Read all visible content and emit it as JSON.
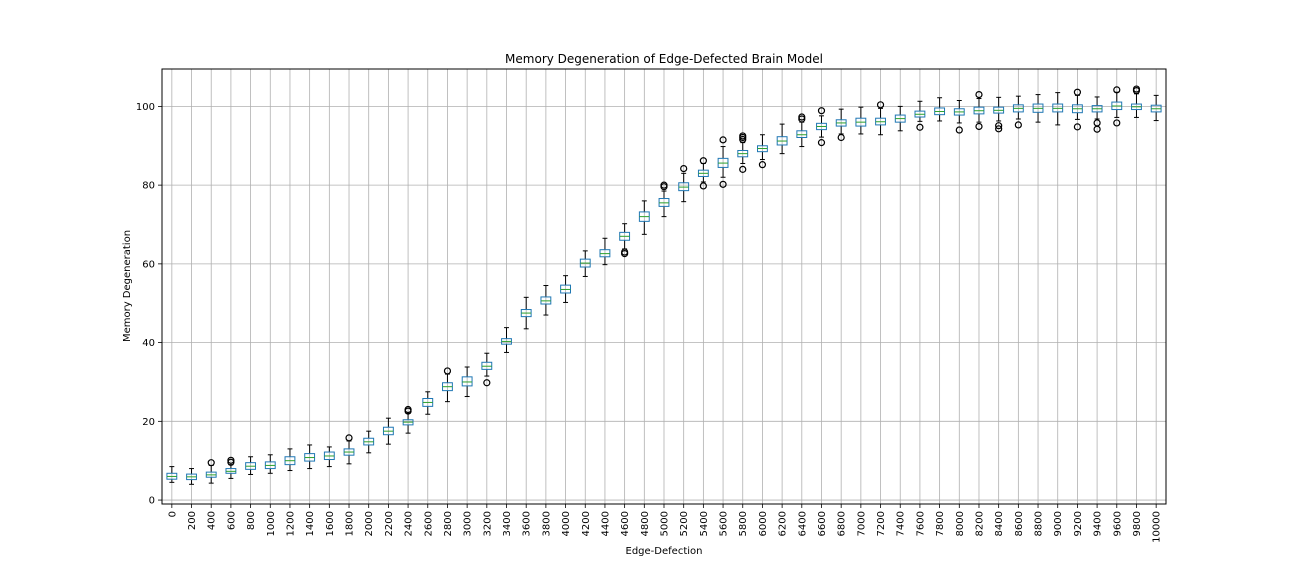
{
  "chart_data": {
    "type": "box",
    "title": "Memory Degeneration of Edge-Defected Brain Model",
    "xlabel": "Edge-Defection",
    "ylabel": "Memory Degeneration",
    "ylim": [
      -1,
      109.5
    ],
    "yticks": [
      0,
      20,
      40,
      60,
      80,
      100
    ],
    "grid": true,
    "box_color": "#1f77b4",
    "median_color": "#2ca02c",
    "whisker_color": "#000000",
    "categories": [
      "0",
      "200",
      "400",
      "600",
      "800",
      "1000",
      "1200",
      "1400",
      "1600",
      "1800",
      "2000",
      "2200",
      "2400",
      "2600",
      "2800",
      "3000",
      "3200",
      "3400",
      "3600",
      "3800",
      "4000",
      "4200",
      "4400",
      "4600",
      "4800",
      "5000",
      "5200",
      "5400",
      "5600",
      "5800",
      "6000",
      "6200",
      "6400",
      "6600",
      "6800",
      "7000",
      "7200",
      "7400",
      "7600",
      "7800",
      "8000",
      "8200",
      "8400",
      "8600",
      "8800",
      "9000",
      "9200",
      "9400",
      "9600",
      "9800",
      "10000"
    ],
    "boxes": [
      {
        "whislo": 4.5,
        "q1": 5.3,
        "med": 6.0,
        "q3": 6.8,
        "whishi": 8.5,
        "fliers": []
      },
      {
        "whislo": 4.0,
        "q1": 5.2,
        "med": 5.9,
        "q3": 6.6,
        "whishi": 8.0,
        "fliers": []
      },
      {
        "whislo": 4.3,
        "q1": 5.8,
        "med": 6.4,
        "q3": 7.1,
        "whishi": 8.8,
        "fliers": [
          9.5
        ]
      },
      {
        "whislo": 5.5,
        "q1": 6.8,
        "med": 7.3,
        "q3": 8.0,
        "whishi": 9.0,
        "fliers": [
          9.6,
          10.1
        ]
      },
      {
        "whislo": 6.5,
        "q1": 7.8,
        "med": 8.6,
        "q3": 9.5,
        "whishi": 11.0,
        "fliers": []
      },
      {
        "whislo": 6.8,
        "q1": 8.0,
        "med": 8.8,
        "q3": 9.7,
        "whishi": 11.5,
        "fliers": []
      },
      {
        "whislo": 7.5,
        "q1": 9.0,
        "med": 10.0,
        "q3": 11.0,
        "whishi": 13.0,
        "fliers": []
      },
      {
        "whislo": 8.0,
        "q1": 9.9,
        "med": 10.8,
        "q3": 11.8,
        "whishi": 14.0,
        "fliers": []
      },
      {
        "whislo": 8.5,
        "q1": 10.3,
        "med": 11.2,
        "q3": 12.2,
        "whishi": 13.5,
        "fliers": []
      },
      {
        "whislo": 9.2,
        "q1": 11.4,
        "med": 12.2,
        "q3": 13.0,
        "whishi": 15.0,
        "fliers": [
          15.8
        ]
      },
      {
        "whislo": 12.0,
        "q1": 14.0,
        "med": 14.8,
        "q3": 15.7,
        "whishi": 17.5,
        "fliers": []
      },
      {
        "whislo": 14.2,
        "q1": 16.6,
        "med": 17.5,
        "q3": 18.5,
        "whishi": 20.8,
        "fliers": []
      },
      {
        "whislo": 17.0,
        "q1": 19.1,
        "med": 19.8,
        "q3": 20.4,
        "whishi": 22.0,
        "fliers": [
          22.6,
          23.0
        ]
      },
      {
        "whislo": 21.8,
        "q1": 23.8,
        "med": 24.8,
        "q3": 25.8,
        "whishi": 27.5,
        "fliers": []
      },
      {
        "whislo": 25.0,
        "q1": 27.8,
        "med": 28.8,
        "q3": 29.8,
        "whishi": 32.0,
        "fliers": [
          32.8
        ]
      },
      {
        "whislo": 26.3,
        "q1": 29.0,
        "med": 30.0,
        "q3": 31.3,
        "whishi": 33.8,
        "fliers": []
      },
      {
        "whislo": 31.5,
        "q1": 33.2,
        "med": 34.0,
        "q3": 35.0,
        "whishi": 37.3,
        "fliers": [
          29.8
        ]
      },
      {
        "whislo": 37.5,
        "q1": 39.6,
        "med": 40.3,
        "q3": 41.0,
        "whishi": 43.8,
        "fliers": []
      },
      {
        "whislo": 43.5,
        "q1": 46.6,
        "med": 47.5,
        "q3": 48.4,
        "whishi": 51.5,
        "fliers": []
      },
      {
        "whislo": 47.0,
        "q1": 49.8,
        "med": 50.6,
        "q3": 51.6,
        "whishi": 54.5,
        "fliers": []
      },
      {
        "whislo": 50.2,
        "q1": 52.6,
        "med": 53.5,
        "q3": 54.6,
        "whishi": 57.0,
        "fliers": []
      },
      {
        "whislo": 56.8,
        "q1": 59.2,
        "med": 60.2,
        "q3": 61.2,
        "whishi": 63.3,
        "fliers": []
      },
      {
        "whislo": 59.8,
        "q1": 61.8,
        "med": 62.6,
        "q3": 63.6,
        "whishi": 66.5,
        "fliers": []
      },
      {
        "whislo": 63.8,
        "q1": 66.0,
        "med": 67.0,
        "q3": 68.0,
        "whishi": 70.2,
        "fliers": [
          62.6,
          63.0
        ]
      },
      {
        "whislo": 67.5,
        "q1": 70.8,
        "med": 72.0,
        "q3": 73.2,
        "whishi": 76.0,
        "fliers": []
      },
      {
        "whislo": 72.0,
        "q1": 74.6,
        "med": 75.5,
        "q3": 76.6,
        "whishi": 78.5,
        "fliers": [
          79.6,
          80.0
        ]
      },
      {
        "whislo": 75.8,
        "q1": 78.6,
        "med": 79.5,
        "q3": 80.6,
        "whishi": 83.0,
        "fliers": [
          84.2
        ]
      },
      {
        "whislo": 80.8,
        "q1": 82.2,
        "med": 83.0,
        "q3": 83.8,
        "whishi": 85.5,
        "fliers": [
          86.2,
          79.8
        ]
      },
      {
        "whislo": 82.0,
        "q1": 84.5,
        "med": 85.6,
        "q3": 86.8,
        "whishi": 89.8,
        "fliers": [
          91.5,
          80.2
        ]
      },
      {
        "whislo": 85.5,
        "q1": 87.2,
        "med": 88.0,
        "q3": 88.8,
        "whishi": 90.8,
        "fliers": [
          91.6,
          92.1,
          92.5,
          84.0
        ]
      },
      {
        "whislo": 86.5,
        "q1": 88.5,
        "med": 89.3,
        "q3": 90.0,
        "whishi": 92.8,
        "fliers": [
          85.2
        ]
      },
      {
        "whislo": 88.0,
        "q1": 90.2,
        "med": 91.2,
        "q3": 92.3,
        "whishi": 95.5,
        "fliers": []
      },
      {
        "whislo": 89.8,
        "q1": 92.1,
        "med": 92.8,
        "q3": 93.8,
        "whishi": 96.0,
        "fliers": [
          96.8,
          97.3
        ]
      },
      {
        "whislo": 92.2,
        "q1": 94.1,
        "med": 94.9,
        "q3": 95.7,
        "whishi": 97.6,
        "fliers": [
          98.9,
          90.8
        ]
      },
      {
        "whislo": 93.0,
        "q1": 95.0,
        "med": 95.8,
        "q3": 96.6,
        "whishi": 99.3,
        "fliers": [
          92.1
        ]
      },
      {
        "whislo": 93.0,
        "q1": 95.0,
        "med": 96.0,
        "q3": 97.0,
        "whishi": 99.8,
        "fliers": []
      },
      {
        "whislo": 92.8,
        "q1": 95.3,
        "med": 96.1,
        "q3": 97.0,
        "whishi": 99.5,
        "fliers": [
          100.4
        ]
      },
      {
        "whislo": 93.8,
        "q1": 96.0,
        "med": 96.9,
        "q3": 97.8,
        "whishi": 100.0,
        "fliers": []
      },
      {
        "whislo": 96.2,
        "q1": 97.3,
        "med": 98.0,
        "q3": 98.8,
        "whishi": 101.3,
        "fliers": [
          94.7
        ]
      },
      {
        "whislo": 96.3,
        "q1": 97.9,
        "med": 98.7,
        "q3": 99.6,
        "whishi": 102.2,
        "fliers": []
      },
      {
        "whislo": 95.8,
        "q1": 97.8,
        "med": 98.6,
        "q3": 99.4,
        "whishi": 101.5,
        "fliers": [
          94.0
        ]
      },
      {
        "whislo": 96.0,
        "q1": 98.1,
        "med": 98.9,
        "q3": 99.8,
        "whishi": 102.0,
        "fliers": [
          103.0,
          94.9
        ]
      },
      {
        "whislo": 96.3,
        "q1": 98.3,
        "med": 99.0,
        "q3": 99.8,
        "whishi": 102.3,
        "fliers": [
          94.3,
          95.1
        ]
      },
      {
        "whislo": 96.8,
        "q1": 98.6,
        "med": 99.5,
        "q3": 100.4,
        "whishi": 102.6,
        "fliers": [
          95.3
        ]
      },
      {
        "whislo": 96.0,
        "q1": 98.5,
        "med": 99.5,
        "q3": 100.6,
        "whishi": 103.0,
        "fliers": []
      },
      {
        "whislo": 95.3,
        "q1": 98.6,
        "med": 99.5,
        "q3": 100.6,
        "whishi": 103.5,
        "fliers": []
      },
      {
        "whislo": 96.7,
        "q1": 98.4,
        "med": 99.4,
        "q3": 100.4,
        "whishi": 102.8,
        "fliers": [
          103.6,
          94.8
        ]
      },
      {
        "whislo": 96.8,
        "q1": 98.6,
        "med": 99.4,
        "q3": 100.2,
        "whishi": 102.4,
        "fliers": [
          95.8,
          94.2
        ]
      },
      {
        "whislo": 97.2,
        "q1": 99.2,
        "med": 100.1,
        "q3": 101.1,
        "whishi": 103.6,
        "fliers": [
          104.2,
          95.8
        ]
      },
      {
        "whislo": 97.2,
        "q1": 99.2,
        "med": 99.9,
        "q3": 100.6,
        "whishi": 103.2,
        "fliers": [
          104.0,
          104.4
        ]
      },
      {
        "whislo": 96.4,
        "q1": 98.6,
        "med": 99.4,
        "q3": 100.3,
        "whishi": 102.8,
        "fliers": []
      }
    ]
  }
}
